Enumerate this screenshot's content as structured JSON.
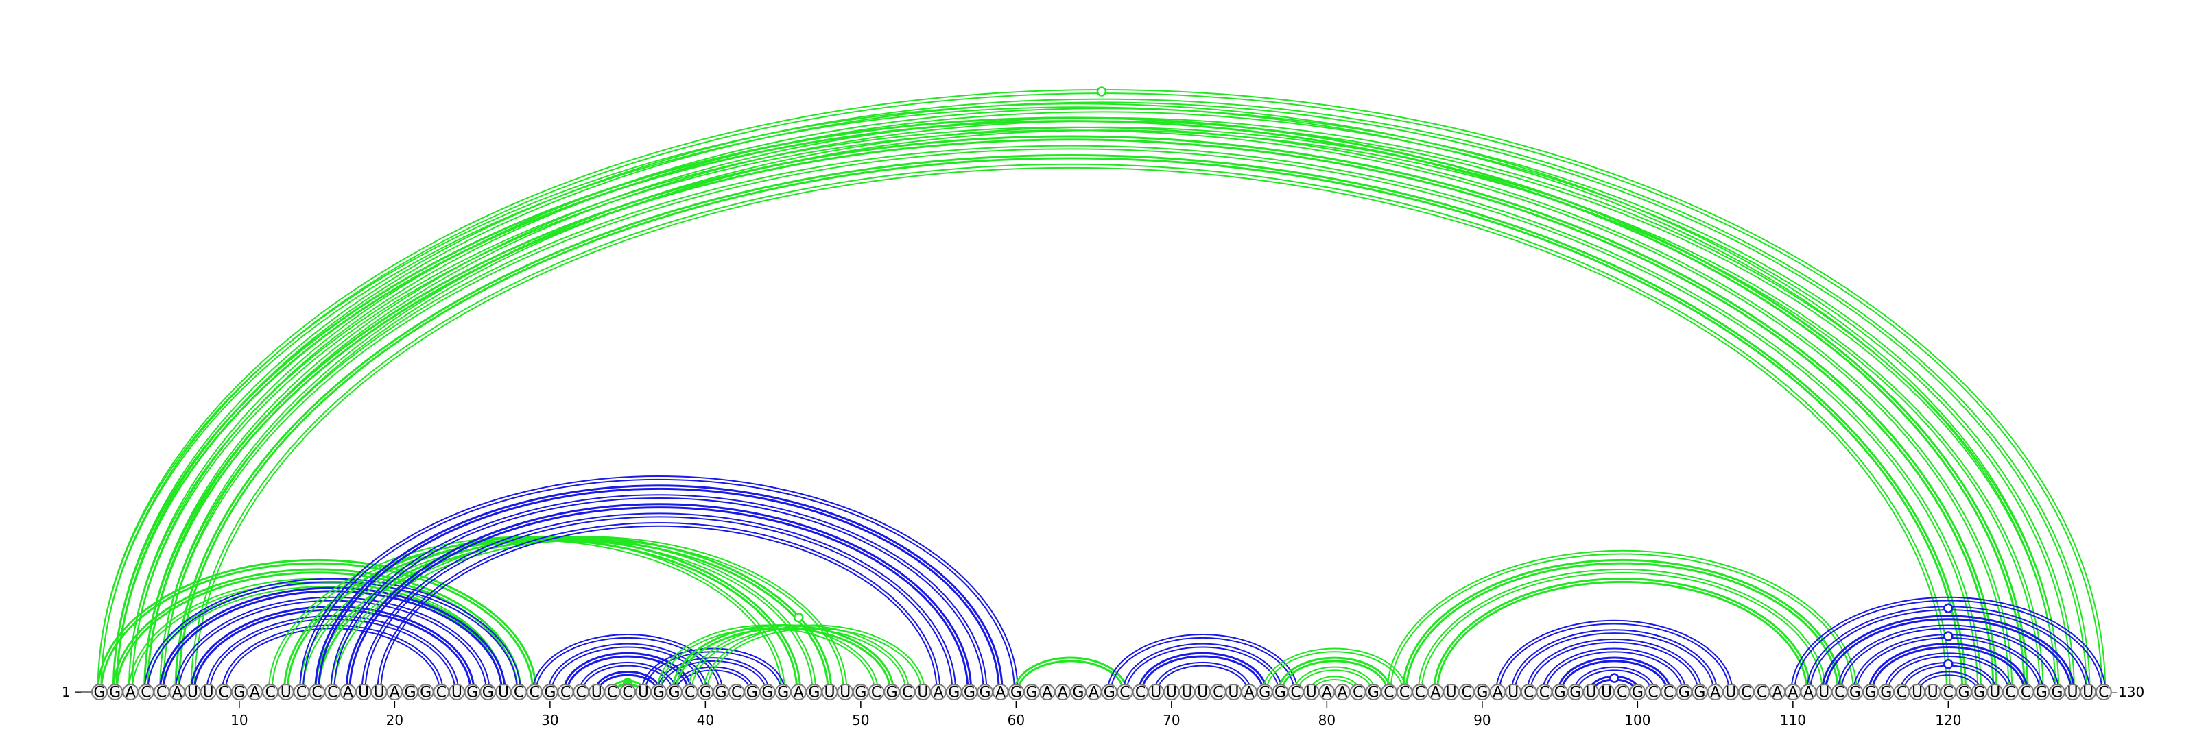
{
  "sequence": "GGACCAUUCGACUCCCAUUAGGCUGGUCCGCCUCCUGGCGGCGGGAGUUGCGCUAGGGAGGAAGAGCCUUUUCUAGGCUAACGCCCAUCGAUCCGGUUCGCCGGAUCCAAAUCGGGCUUCGGUCCGGUUC",
  "start_label": "1",
  "end_label": "130",
  "ticks": [
    "10",
    "20",
    "30",
    "40",
    "50",
    "60",
    "70",
    "80",
    "90",
    "100",
    "110",
    "120"
  ],
  "colors": {
    "green": "#22e622",
    "blue": "#1a1ae6"
  },
  "arcs": [
    {
      "i": 1,
      "j": 130,
      "color": "green",
      "w": 2
    },
    {
      "i": 2,
      "j": 129,
      "color": "green",
      "w": 2
    },
    {
      "i": 3,
      "j": 128,
      "color": "green",
      "w": 2
    },
    {
      "i": 4,
      "j": 127,
      "color": "green",
      "w": 2
    },
    {
      "i": 5,
      "j": 126,
      "color": "green",
      "w": 2
    },
    {
      "i": 1,
      "j": 127,
      "color": "green",
      "w": 2
    },
    {
      "i": 2,
      "j": 125,
      "color": "green",
      "w": 3
    },
    {
      "i": 3,
      "j": 124,
      "color": "green",
      "w": 2
    },
    {
      "i": 4,
      "j": 123,
      "color": "green",
      "w": 3
    },
    {
      "i": 5,
      "j": 122,
      "color": "green",
      "w": 2
    },
    {
      "i": 6,
      "j": 121,
      "color": "green",
      "w": 3
    },
    {
      "i": 7,
      "j": 120,
      "color": "green",
      "w": 2
    },
    {
      "i": 1,
      "j": 29,
      "color": "green",
      "w": 3
    },
    {
      "i": 2,
      "j": 28,
      "color": "green",
      "w": 3
    },
    {
      "i": 3,
      "j": 27,
      "color": "green",
      "w": 2
    },
    {
      "i": 4,
      "j": 27,
      "color": "green",
      "w": 2
    },
    {
      "i": 4,
      "j": 28,
      "color": "blue",
      "w": 2
    },
    {
      "i": 5,
      "j": 27,
      "color": "blue",
      "w": 3
    },
    {
      "i": 6,
      "j": 26,
      "color": "blue",
      "w": 2
    },
    {
      "i": 7,
      "j": 25,
      "color": "blue",
      "w": 3
    },
    {
      "i": 8,
      "j": 24,
      "color": "blue",
      "w": 2
    },
    {
      "i": 9,
      "j": 23,
      "color": "blue",
      "w": 2
    },
    {
      "i": 12,
      "j": 45,
      "color": "green",
      "w": 2
    },
    {
      "i": 13,
      "j": 46,
      "color": "green",
      "w": 3
    },
    {
      "i": 14,
      "j": 47,
      "color": "green",
      "w": 2
    },
    {
      "i": 15,
      "j": 48,
      "color": "green",
      "w": 3
    },
    {
      "i": 16,
      "j": 49,
      "color": "green",
      "w": 2
    },
    {
      "i": 14,
      "j": 60,
      "color": "blue",
      "w": 2
    },
    {
      "i": 15,
      "j": 59,
      "color": "blue",
      "w": 3
    },
    {
      "i": 16,
      "j": 58,
      "color": "blue",
      "w": 2
    },
    {
      "i": 17,
      "j": 57,
      "color": "blue",
      "w": 3
    },
    {
      "i": 18,
      "j": 56,
      "color": "blue",
      "w": 2
    },
    {
      "i": 19,
      "j": 55,
      "color": "blue",
      "w": 2
    },
    {
      "i": 29,
      "j": 41,
      "color": "blue",
      "w": 2
    },
    {
      "i": 30,
      "j": 40,
      "color": "blue",
      "w": 2
    },
    {
      "i": 31,
      "j": 39,
      "color": "blue",
      "w": 3
    },
    {
      "i": 32,
      "j": 38,
      "color": "blue",
      "w": 2
    },
    {
      "i": 33,
      "j": 37,
      "color": "blue",
      "w": 3
    },
    {
      "i": 34,
      "j": 36,
      "color": "green",
      "w": 3
    },
    {
      "i": 36,
      "j": 45,
      "color": "blue",
      "w": 2
    },
    {
      "i": 37,
      "j": 44,
      "color": "blue",
      "w": 2
    },
    {
      "i": 38,
      "j": 43,
      "color": "blue",
      "w": 2
    },
    {
      "i": 37,
      "j": 51,
      "color": "green",
      "w": 2
    },
    {
      "i": 38,
      "j": 52,
      "color": "green",
      "w": 3
    },
    {
      "i": 39,
      "j": 53,
      "color": "green",
      "w": 2
    },
    {
      "i": 40,
      "j": 54,
      "color": "green",
      "w": 2
    },
    {
      "i": 60,
      "j": 67,
      "color": "green",
      "w": 3
    },
    {
      "i": 66,
      "j": 78,
      "color": "blue",
      "w": 2
    },
    {
      "i": 67,
      "j": 77,
      "color": "blue",
      "w": 2
    },
    {
      "i": 68,
      "j": 76,
      "color": "blue",
      "w": 3
    },
    {
      "i": 69,
      "j": 75,
      "color": "blue",
      "w": 2
    },
    {
      "i": 76,
      "j": 85,
      "color": "green",
      "w": 2
    },
    {
      "i": 77,
      "j": 84,
      "color": "green",
      "w": 3
    },
    {
      "i": 78,
      "j": 83,
      "color": "green",
      "w": 2
    },
    {
      "i": 79,
      "j": 82,
      "color": "green",
      "w": 2
    },
    {
      "i": 84,
      "j": 114,
      "color": "green",
      "w": 2
    },
    {
      "i": 85,
      "j": 113,
      "color": "green",
      "w": 3
    },
    {
      "i": 86,
      "j": 112,
      "color": "green",
      "w": 2
    },
    {
      "i": 87,
      "j": 111,
      "color": "green",
      "w": 3
    },
    {
      "i": 91,
      "j": 106,
      "color": "blue",
      "w": 2
    },
    {
      "i": 92,
      "j": 105,
      "color": "blue",
      "w": 2
    },
    {
      "i": 93,
      "j": 104,
      "color": "blue",
      "w": 2
    },
    {
      "i": 94,
      "j": 103,
      "color": "blue",
      "w": 2
    },
    {
      "i": 95,
      "j": 102,
      "color": "blue",
      "w": 3
    },
    {
      "i": 96,
      "j": 101,
      "color": "blue",
      "w": 2
    },
    {
      "i": 97,
      "j": 100,
      "color": "blue",
      "w": 3
    },
    {
      "i": 110,
      "j": 130,
      "color": "blue",
      "w": 2
    },
    {
      "i": 111,
      "j": 129,
      "color": "blue",
      "w": 2
    },
    {
      "i": 112,
      "j": 128,
      "color": "blue",
      "w": 3
    },
    {
      "i": 113,
      "j": 127,
      "color": "blue",
      "w": 2
    },
    {
      "i": 114,
      "j": 126,
      "color": "blue",
      "w": 2
    },
    {
      "i": 115,
      "j": 125,
      "color": "blue",
      "w": 3
    },
    {
      "i": 116,
      "j": 124,
      "color": "blue",
      "w": 2
    },
    {
      "i": 117,
      "j": 123,
      "color": "blue",
      "w": 2
    },
    {
      "i": 118,
      "j": 122,
      "color": "blue",
      "w": 2
    }
  ],
  "markers": [
    {
      "i": 1,
      "j": 130,
      "color": "green",
      "fill": "open"
    },
    {
      "i": 38,
      "j": 54,
      "color": "green",
      "fill": "open"
    },
    {
      "i": 34,
      "j": 36,
      "color": "green",
      "fill": "filled"
    },
    {
      "i": 97,
      "j": 100,
      "color": "blue",
      "fill": "open"
    },
    {
      "i": 111,
      "j": 129,
      "color": "blue",
      "fill": "open"
    },
    {
      "i": 114,
      "j": 126,
      "color": "blue",
      "fill": "open"
    },
    {
      "i": 117,
      "j": 123,
      "color": "blue",
      "fill": "open"
    }
  ]
}
